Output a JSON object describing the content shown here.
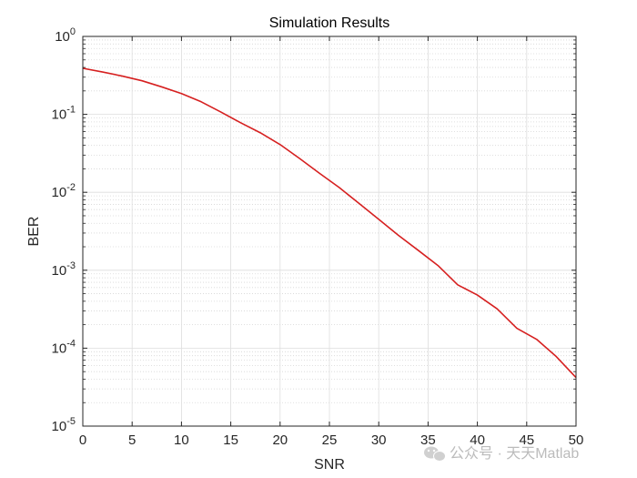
{
  "chart_data": {
    "type": "line",
    "title": "Simulation Results",
    "xlabel": "SNR",
    "ylabel": "BER",
    "yscale": "log",
    "xlim": [
      0,
      50
    ],
    "ylim_exp": [
      -5,
      0
    ],
    "xticks": [
      0,
      5,
      10,
      15,
      20,
      25,
      30,
      35,
      40,
      45,
      50
    ],
    "xtick_labels": [
      "0",
      "5",
      "10",
      "15",
      "20",
      "25",
      "30",
      "35",
      "40",
      "45",
      "50"
    ],
    "ytick_base": "10",
    "ytick_exponents": [
      "-5",
      "-4",
      "-3",
      "-2",
      "-1",
      "0"
    ],
    "grid": true,
    "minor_grid": true,
    "series": [
      {
        "name": "BER",
        "color": "#d62020",
        "x": [
          0,
          2,
          4,
          6,
          8,
          10,
          12,
          14,
          16,
          18,
          20,
          22,
          24,
          26,
          28,
          30,
          32,
          34,
          36,
          38,
          40,
          42,
          44,
          46,
          48,
          50
        ],
        "y": [
          0.39,
          0.35,
          0.31,
          0.27,
          0.225,
          0.185,
          0.145,
          0.107,
          0.078,
          0.058,
          0.041,
          0.027,
          0.0175,
          0.0115,
          0.0072,
          0.0045,
          0.0028,
          0.0018,
          0.00115,
          0.00065,
          0.00048,
          0.00032,
          0.00018,
          0.00013,
          7.8e-05,
          4.2e-05
        ]
      }
    ]
  },
  "watermark": {
    "text": "公众号 · 天天Matlab",
    "icon": "wechat-icon"
  }
}
